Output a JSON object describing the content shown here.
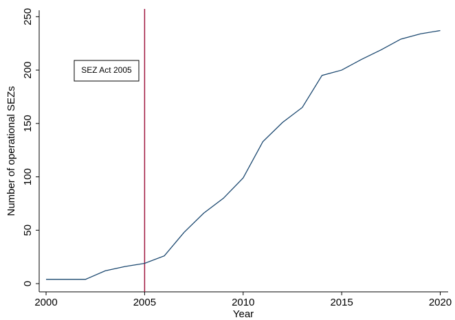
{
  "chart_data": {
    "type": "line",
    "x_label": "Year",
    "y_label": "Number of operational SEZs",
    "x": [
      2000,
      2001,
      2002,
      2003,
      2004,
      2005,
      2006,
      2007,
      2008,
      2009,
      2010,
      2011,
      2012,
      2013,
      2014,
      2015,
      2016,
      2017,
      2018,
      2019,
      2020
    ],
    "series": [
      {
        "name": "Number of operational SEZs",
        "color": "#1a476f",
        "values": [
          4,
          4,
          4,
          12,
          16,
          19,
          26,
          48,
          66,
          80,
          99,
          133,
          151,
          165,
          195,
          200,
          210,
          219,
          229,
          234,
          237
        ]
      }
    ],
    "xlim": [
      1999.65,
      2020.4
    ],
    "ylim": [
      -7.7,
      256
    ],
    "xticks": [
      2000,
      2005,
      2010,
      2015,
      2020
    ],
    "yticks": [
      0,
      50,
      100,
      150,
      200,
      250
    ],
    "vline": {
      "x": 2005,
      "color": "#a0153e"
    },
    "annotation": "SEZ Act 2005",
    "grid": false
  }
}
